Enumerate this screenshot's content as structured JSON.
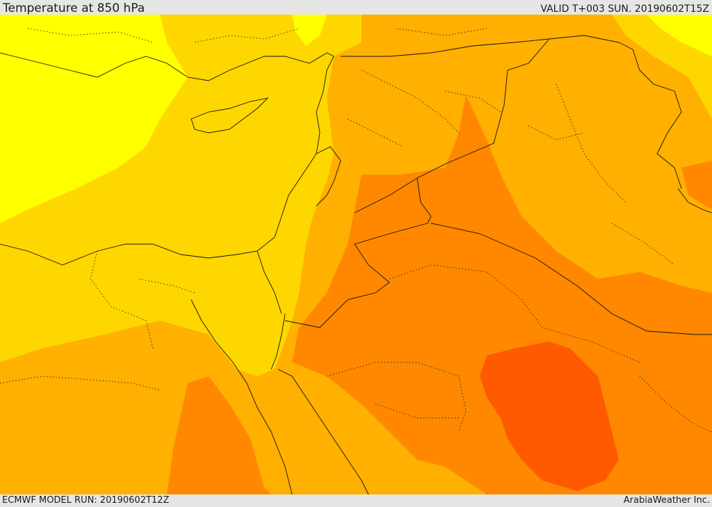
{
  "header": {
    "title": "Temperature at 850 hPa",
    "valid_time": "VALID T+003 SUN. 20190602T15Z"
  },
  "footer": {
    "model_run": "ECMWF MODEL RUN: 20190602T12Z",
    "credit": "ArabiaWeather Inc."
  },
  "map": {
    "variable": "Temperature at 850 hPa",
    "palette": [
      "#ffff00",
      "#ffd700",
      "#ffb000",
      "#ff8800",
      "#ff5a00"
    ]
  }
}
